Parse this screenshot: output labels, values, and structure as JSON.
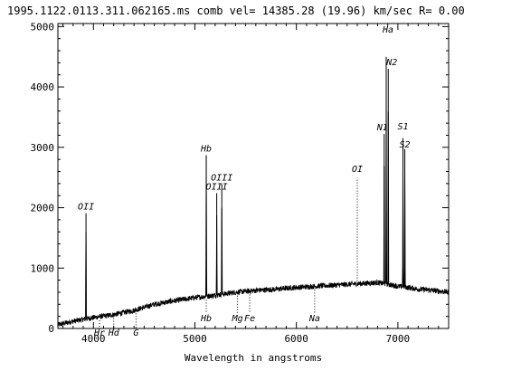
{
  "chart_data": {
    "type": "line",
    "title": "1995.1122.0113.311.062165.ms  comb vel= 14385.28 (19.96) km/sec R= 0.00",
    "xlabel": "Wavelength in angstroms",
    "ylabel": "",
    "xlim": [
      3650,
      7500
    ],
    "ylim": [
      0,
      5050
    ],
    "xticks": [
      4000,
      5000,
      6000,
      7000
    ],
    "yticks": [
      0,
      1000,
      2000,
      3000,
      4000,
      5000
    ],
    "grid": false,
    "continuum": {
      "x": [
        3650,
        3800,
        4000,
        4200,
        4400,
        4600,
        4800,
        5000,
        5200,
        5400,
        5600,
        5800,
        6000,
        6200,
        6400,
        6600,
        6800,
        6900,
        7000,
        7100,
        7200,
        7300,
        7400,
        7500
      ],
      "y": [
        60,
        120,
        180,
        230,
        300,
        400,
        460,
        510,
        550,
        600,
        630,
        650,
        680,
        700,
        720,
        740,
        760,
        730,
        700,
        680,
        650,
        640,
        620,
        600
      ]
    },
    "emission_lines": [
      {
        "label": "OII",
        "x": 3927,
        "peak": 1910,
        "dotted": false
      },
      {
        "label": "Hb",
        "x": 5112,
        "peak": 2870,
        "dotted": false
      },
      {
        "label": "OIII",
        "x": 5215,
        "peak": 2240,
        "dotted": false
      },
      {
        "label": "OIII",
        "x": 5265,
        "peak": 2390,
        "dotted": false
      },
      {
        "label": "OI",
        "x": 6600,
        "peak": 2500,
        "dotted": true
      },
      {
        "label": "N1",
        "x": 6865,
        "peak": 3220,
        "dotted": false
      },
      {
        "label": "Ha",
        "x": 6885,
        "peak": 4500,
        "dotted": false
      },
      {
        "label": "N2",
        "x": 6905,
        "peak": 4300,
        "dotted": false
      },
      {
        "label": "S1",
        "x": 7050,
        "peak": 3150,
        "dotted": false
      },
      {
        "label": "S2",
        "x": 7068,
        "peak": 2970,
        "dotted": false
      }
    ],
    "line_annotations": [
      {
        "label": "OII",
        "x": 3927
      },
      {
        "label": "Hb",
        "x": 5112
      },
      {
        "label": "OIII",
        "x": 5215
      },
      {
        "label": "OIII",
        "x": 5265
      },
      {
        "label": "OI",
        "x": 6600
      },
      {
        "label": "N1",
        "x": 6865
      },
      {
        "label": "Ha",
        "x": 6885
      },
      {
        "label": "N2",
        "x": 6905
      },
      {
        "label": "S1",
        "x": 7050
      },
      {
        "label": "S2",
        "x": 7068
      }
    ],
    "absorption_annotations": [
      {
        "label": "Hb",
        "x": 5112
      },
      {
        "label": "Mg",
        "x": 5420
      },
      {
        "label": "Fe",
        "x": 5540
      },
      {
        "label": "Na",
        "x": 6180
      },
      {
        "label": "Hd",
        "x": 4200
      },
      {
        "label": "G",
        "x": 4420
      },
      {
        "label": "Hr",
        "x": 4060
      }
    ]
  }
}
